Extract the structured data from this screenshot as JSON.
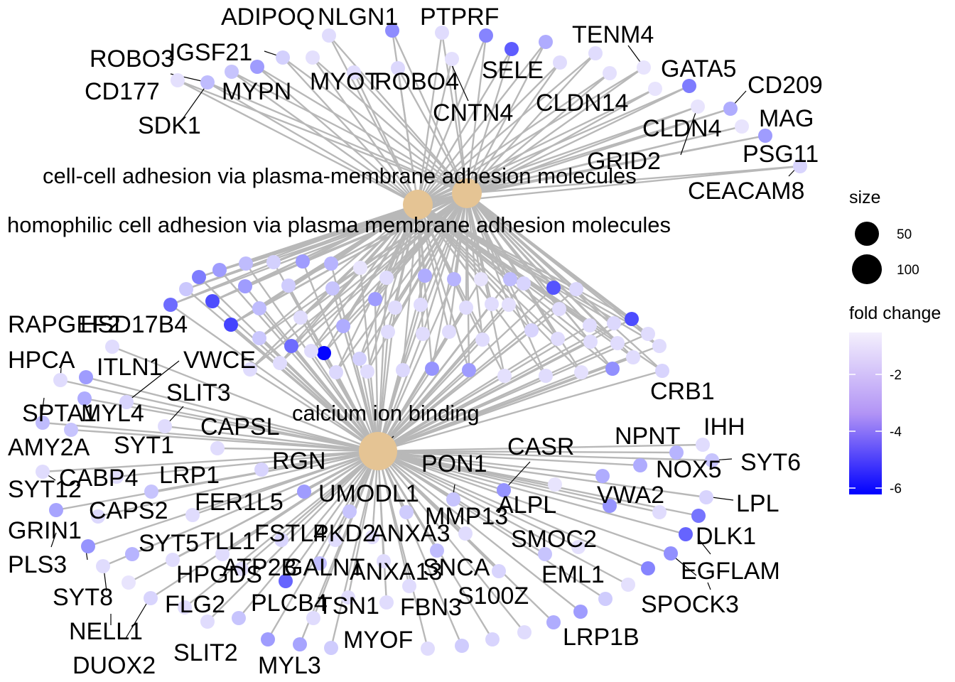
{
  "categories": [
    {
      "id": "cc",
      "label": "cell-cell adhesion via plasma-membrane adhesion molecules",
      "size": 90
    },
    {
      "id": "ho",
      "label": "homophilic cell adhesion via plasma membrane adhesion molecules",
      "size": 90
    },
    {
      "id": "ca",
      "label": "calcium ion binding",
      "size": 110
    }
  ],
  "gene_labels": {
    "adhesion": [
      "ADIPOQ",
      "NLGN1",
      "PTPRF",
      "TENM4",
      "ROBO3",
      "IGSF21",
      "GATA5",
      "CD209",
      "MYOT",
      "ROBO4",
      "SELE",
      "CD177",
      "MYPN",
      "CNTN4",
      "CLDN14",
      "SDK1",
      "CLDN4",
      "MAG",
      "GRID2",
      "PSG11",
      "CEACAM8"
    ],
    "calcium": [
      "RAPGEF2",
      "HSD17B4",
      "HPCA",
      "ITLN1",
      "VWCE",
      "SLIT3",
      "SPTA1",
      "MYL4",
      "CAPSL",
      "AMY2A",
      "SYT1",
      "RGN",
      "CABP4",
      "LRP1",
      "SYT12",
      "PON1",
      "CASR",
      "NPNT",
      "IHH",
      "SYT6",
      "NOX5",
      "UMODL1",
      "CAPS2",
      "FER1L5",
      "VWA2",
      "ALPL",
      "MMP13",
      "LPL",
      "GRIN1",
      "FSTL4",
      "PKD2",
      "ANXA3",
      "SMOC2",
      "DLK1",
      "SYT5",
      "TLL1",
      "PLS3",
      "EGFLAM",
      "HPGDS",
      "ATP2B",
      "GALNT",
      "ANXA13",
      "SNCA",
      "EML1",
      "SYT8",
      "PLCB4",
      "TSN1",
      "FBN3",
      "S100Z",
      "SPOCK3",
      "FLG2",
      "NELL1",
      "LRP1B",
      "MYOF",
      "SLIT2",
      "DUOX2",
      "MYL3",
      "CRB1"
    ]
  },
  "shared_genes": {
    "count": 63
  },
  "legend": {
    "size_title": "size",
    "size_values": [
      50,
      100
    ],
    "color_title": "fold change",
    "color_ticks": [
      -2,
      -4,
      -6
    ],
    "color_range": [
      -6.5,
      -0.5
    ],
    "colors": {
      "low": "#0000ff",
      "high": "#f4f0fd"
    }
  },
  "colors": {
    "hub": "#e5c494",
    "edge": "#b8b8b8"
  }
}
